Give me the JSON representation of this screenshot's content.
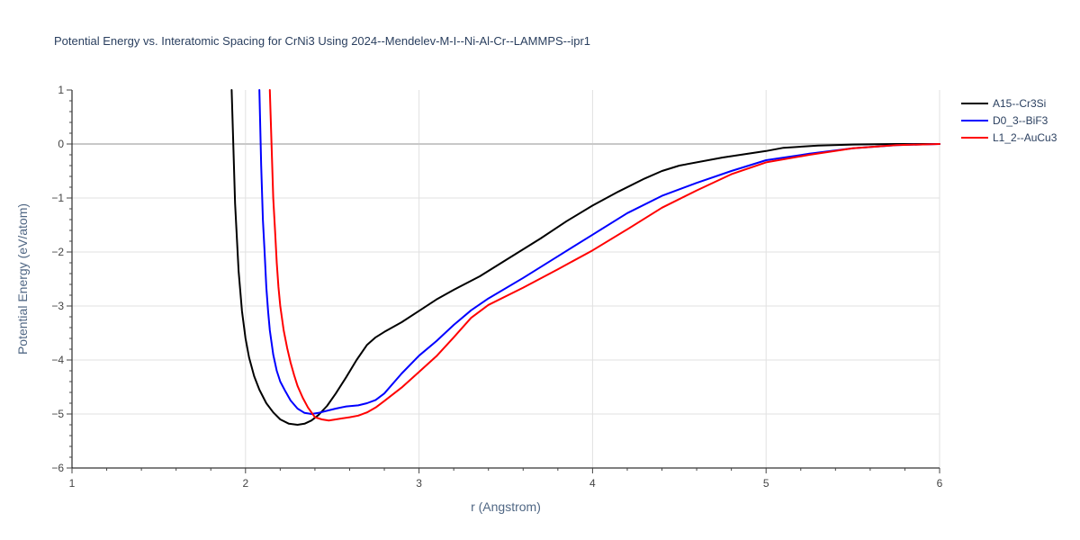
{
  "chart_data": {
    "type": "line",
    "title": "Potential Energy vs. Interatomic Spacing for CrNi3 Using 2024--Mendelev-M-I--Ni-Al-Cr--LAMMPS--ipr1",
    "xlabel": "r (Angstrom)",
    "ylabel": "Potential Energy (eV/atom)",
    "xlim": [
      1,
      6
    ],
    "ylim": [
      -6,
      1
    ],
    "x_ticks": [
      1,
      2,
      3,
      4,
      5,
      6
    ],
    "y_ticks": [
      1,
      0,
      -1,
      -2,
      -3,
      -4,
      -5,
      -6
    ],
    "y_tick_labels": [
      "1",
      "0",
      "−1",
      "−2",
      "−3",
      "−4",
      "−5",
      "−6"
    ],
    "grid": true,
    "legend_position": "top-right",
    "series": [
      {
        "name": "A15--Cr3Si",
        "color": "#000000",
        "x": [
          1.92,
          1.94,
          1.96,
          1.98,
          2.0,
          2.02,
          2.05,
          2.08,
          2.12,
          2.16,
          2.2,
          2.25,
          2.3,
          2.34,
          2.38,
          2.42,
          2.47,
          2.52,
          2.58,
          2.64,
          2.7,
          2.75,
          2.8,
          2.9,
          3.0,
          3.1,
          3.2,
          3.35,
          3.5,
          3.7,
          3.85,
          4.0,
          4.15,
          4.3,
          4.4,
          4.5,
          4.75,
          5.0,
          5.1,
          5.3,
          5.5,
          5.75,
          6.0
        ],
        "y": [
          1.0,
          -1.1,
          -2.35,
          -3.1,
          -3.6,
          -3.95,
          -4.3,
          -4.55,
          -4.8,
          -4.97,
          -5.1,
          -5.18,
          -5.2,
          -5.18,
          -5.12,
          -5.02,
          -4.85,
          -4.62,
          -4.32,
          -4.0,
          -3.72,
          -3.58,
          -3.48,
          -3.3,
          -3.09,
          -2.88,
          -2.7,
          -2.45,
          -2.15,
          -1.75,
          -1.43,
          -1.14,
          -0.88,
          -0.64,
          -0.5,
          -0.4,
          -0.25,
          -0.13,
          -0.07,
          -0.03,
          -0.01,
          0.0,
          0.0
        ]
      },
      {
        "name": "D0_3--BiF3",
        "color": "#0000ff",
        "x": [
          2.08,
          2.09,
          2.1,
          2.11,
          2.12,
          2.13,
          2.14,
          2.16,
          2.18,
          2.2,
          2.23,
          2.26,
          2.3,
          2.34,
          2.38,
          2.42,
          2.47,
          2.52,
          2.58,
          2.65,
          2.7,
          2.75,
          2.8,
          2.9,
          3.0,
          3.1,
          3.2,
          3.3,
          3.4,
          3.6,
          3.8,
          4.0,
          4.2,
          4.4,
          4.6,
          4.8,
          5.0,
          5.25,
          5.5,
          5.75,
          6.0
        ],
        "y": [
          1.0,
          -0.4,
          -1.4,
          -2.0,
          -2.65,
          -3.1,
          -3.45,
          -3.9,
          -4.2,
          -4.4,
          -4.58,
          -4.75,
          -4.9,
          -4.98,
          -5.0,
          -4.98,
          -4.94,
          -4.9,
          -4.86,
          -4.84,
          -4.8,
          -4.74,
          -4.62,
          -4.25,
          -3.92,
          -3.65,
          -3.35,
          -3.08,
          -2.86,
          -2.48,
          -2.08,
          -1.68,
          -1.28,
          -0.96,
          -0.72,
          -0.5,
          -0.3,
          -0.18,
          -0.08,
          -0.02,
          0.0
        ]
      },
      {
        "name": "L1_2--AuCu3",
        "color": "#ff0000",
        "x": [
          2.14,
          2.15,
          2.16,
          2.17,
          2.18,
          2.19,
          2.2,
          2.22,
          2.24,
          2.26,
          2.28,
          2.3,
          2.33,
          2.36,
          2.4,
          2.44,
          2.48,
          2.52,
          2.56,
          2.6,
          2.65,
          2.7,
          2.75,
          2.8,
          2.9,
          3.0,
          3.1,
          3.2,
          3.3,
          3.4,
          3.6,
          3.8,
          4.0,
          4.2,
          4.4,
          4.6,
          4.8,
          5.0,
          5.25,
          5.5,
          5.75,
          6.0
        ],
        "y": [
          1.0,
          0.0,
          -1.0,
          -1.6,
          -2.2,
          -2.65,
          -3.0,
          -3.45,
          -3.78,
          -4.05,
          -4.28,
          -4.48,
          -4.7,
          -4.88,
          -5.06,
          -5.1,
          -5.12,
          -5.1,
          -5.08,
          -5.06,
          -5.03,
          -4.97,
          -4.88,
          -4.76,
          -4.51,
          -4.22,
          -3.93,
          -3.58,
          -3.22,
          -2.98,
          -2.66,
          -2.32,
          -1.97,
          -1.58,
          -1.18,
          -0.86,
          -0.56,
          -0.34,
          -0.2,
          -0.08,
          -0.02,
          0.0
        ]
      }
    ]
  }
}
